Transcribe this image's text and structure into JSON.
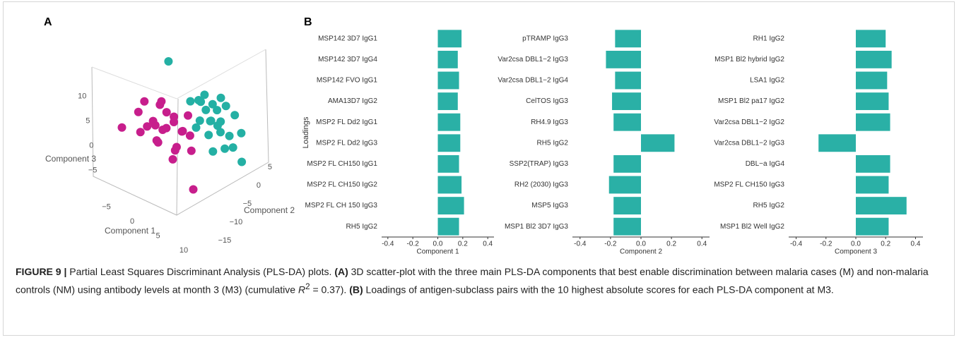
{
  "panel_labels": [
    "A",
    "B"
  ],
  "chart_data": [
    {
      "type": "scatter3d",
      "xlabel": "Component 1",
      "ylabel": "Component 2",
      "zlabel": "Component 3",
      "xlim": [
        -8,
        12
      ],
      "ylim": [
        -17,
        8
      ],
      "zlim": [
        -7,
        13
      ],
      "xticks": [
        {
          "value": -5,
          "label": "−5"
        },
        0,
        5,
        10
      ],
      "yticks": [
        5,
        0,
        {
          "value": -5,
          "label": "−5"
        },
        {
          "value": -10,
          "label": "−10"
        },
        {
          "value": -15,
          "label": "−15"
        }
      ],
      "zticks": [
        10,
        5,
        0,
        {
          "value": -5,
          "label": "−5"
        }
      ],
      "series": [
        {
          "color": "#c71e8c",
          "x": [
            -2,
            -4,
            0,
            -3,
            1,
            -5,
            -1,
            2,
            -3,
            0,
            -6,
            1,
            -2,
            3,
            -4,
            0,
            -1,
            2,
            -5,
            4,
            -3,
            1,
            -2,
            5,
            -7
          ],
          "y": [
            -6,
            -8,
            -5,
            -4,
            -7,
            -9,
            -3,
            -6,
            -7,
            -8,
            -7,
            -4,
            -9,
            -5,
            -5,
            -6,
            -10,
            -3,
            -6,
            -7,
            -2,
            -9,
            -5,
            -10,
            -12
          ],
          "z": [
            -1,
            0,
            1,
            2,
            -2,
            -1,
            0,
            1,
            -3,
            2,
            1,
            -1,
            3,
            0,
            -2,
            -4,
            0,
            2,
            3,
            -1,
            -1,
            -3,
            4,
            -6,
            1
          ]
        },
        {
          "color": "#24b0a4",
          "x": [
            3,
            5,
            1,
            4,
            2,
            6,
            0,
            3,
            7,
            2,
            4,
            5,
            1,
            6,
            3,
            8,
            2,
            4,
            5,
            0,
            7,
            3,
            -4,
            9,
            6
          ],
          "y": [
            3,
            2,
            4,
            5,
            1,
            4,
            2,
            6,
            3,
            4,
            0,
            6,
            1,
            1,
            2,
            5,
            5,
            3,
            -1,
            5,
            0,
            8,
            3,
            2,
            7
          ],
          "z": [
            -3,
            -2,
            -1,
            -4,
            -2,
            -5,
            0,
            -3,
            -6,
            1,
            -3,
            -1,
            -4,
            -2,
            0,
            -4,
            -5,
            1,
            -5,
            -2,
            -4,
            -2,
            5,
            -7,
            -3
          ]
        }
      ]
    },
    {
      "type": "bar",
      "orientation": "horizontal",
      "color": "#2ab0a6",
      "ylabel": "Loadings",
      "xlabel": "Component 1",
      "categories": [
        "MSP142 3D7 IgG1",
        "MSP142 3D7 IgG4",
        "MSP142 FVO IgG1",
        "AMA13D7 IgG2",
        "MSP2 FL Dd2 IgG1",
        "MSP2 FL Dd2 IgG3",
        "MSP2 FL CH150 IgG1",
        "MSP2 FL CH150 IgG2",
        "MSP2 FL CH 150 IgG3",
        "RH5 IgG2"
      ],
      "values": [
        0.19,
        0.16,
        0.17,
        0.16,
        0.18,
        0.18,
        0.17,
        0.19,
        0.21,
        0.17
      ],
      "xlim": [
        -0.45,
        0.45
      ],
      "xticks": [
        -0.4,
        -0.2,
        {
          "value": 0,
          "label": "0.0"
        },
        0.2,
        0.4
      ]
    },
    {
      "type": "bar",
      "orientation": "horizontal",
      "color": "#2ab0a6",
      "xlabel": "Component 2",
      "categories": [
        "pTRAMP IgG3",
        "Var2csa DBL1−2 IgG3",
        "Var2csa DBL1−2 IgG4",
        "CelTOS IgG3",
        "RH4.9 IgG3",
        "RH5 IgG2",
        "SSP2(TRAP) IgG3",
        "RH2 (2030) IgG3",
        "MSP5 IgG3",
        "MSP1 Bl2 3D7 IgG3"
      ],
      "values": [
        -0.17,
        -0.23,
        -0.17,
        -0.19,
        -0.18,
        0.22,
        -0.18,
        -0.21,
        -0.18,
        -0.18
      ],
      "xlim": [
        -0.45,
        0.45
      ],
      "xticks": [
        -0.4,
        -0.2,
        {
          "value": 0,
          "label": "0.0"
        },
        0.2,
        0.4
      ]
    },
    {
      "type": "bar",
      "orientation": "horizontal",
      "color": "#2ab0a6",
      "xlabel": "Component 3",
      "categories": [
        "RH1 IgG2",
        "MSP1 Bl2 hybrid IgG2",
        "LSA1 IgG2",
        "MSP1 Bl2 pa17 IgG2",
        "Var2csa DBL1−2 IgG2",
        "Var2csa DBL1−2 IgG3",
        "DBL−a IgG4",
        "MSP2 FL CH150 IgG3",
        "RH5 IgG2",
        "MSP1 Bl2 Well IgG2"
      ],
      "values": [
        0.2,
        0.24,
        0.21,
        0.22,
        0.23,
        -0.25,
        0.23,
        0.22,
        0.34,
        0.22
      ],
      "xlim": [
        -0.45,
        0.45
      ],
      "xticks": [
        -0.4,
        -0.2,
        {
          "value": 0,
          "label": "0.0"
        },
        0.2,
        0.4
      ]
    }
  ],
  "caption": {
    "figure_label": "FIGURE 9 |",
    "text_1": "Partial Least Squares Discriminant Analysis (PLS-DA) plots.",
    "panel_a": "(A)",
    "text_2": "3D scatter-plot with the three main PLS-DA components that best enable discrimination between malaria cases (M) and non-malaria controls (NM) using antibody levels at month 3 (M3) (cumulative",
    "r": "R",
    "sup": "2",
    "text_3": "= 0.37).",
    "panel_b": "(B)",
    "text_4": "Loadings of antigen-subclass pairs with the 10 highest absolute scores for each PLS-DA component at M3."
  }
}
